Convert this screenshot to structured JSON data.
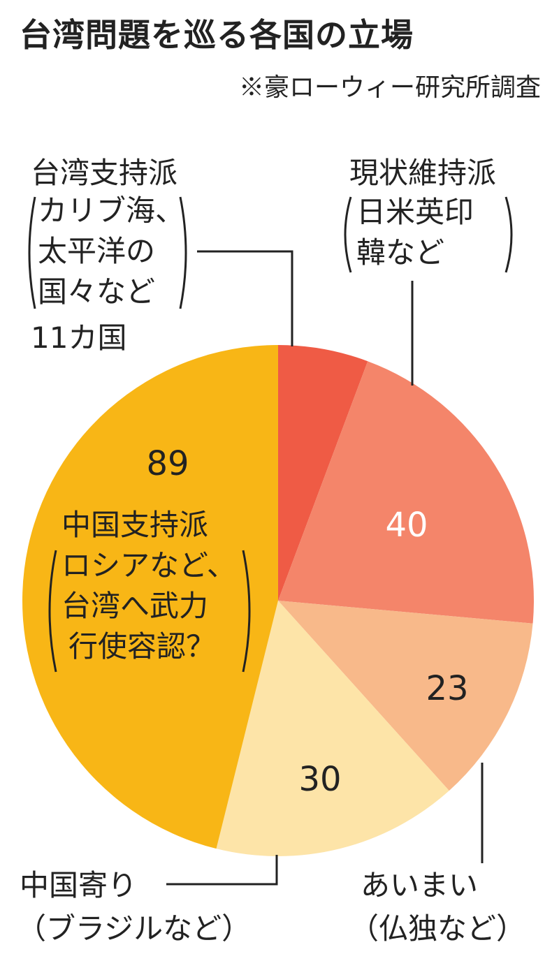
{
  "title": "台湾問題を巡る各国の立場",
  "source": "※豪ローウィー研究所調査",
  "chart_data": {
    "type": "pie",
    "categories": [
      "台湾支持派",
      "現状維持派",
      "あいまい",
      "中国寄り",
      "中国支持派"
    ],
    "values": [
      11,
      40,
      23,
      30,
      89
    ],
    "value_labels": [
      "",
      "40",
      "23",
      "30",
      "89"
    ],
    "colors": [
      "#ef5b45",
      "#f4856a",
      "#f8b98a",
      "#fde4a8",
      "#f8b616"
    ],
    "start_angle_deg": 0,
    "direction": "clockwise",
    "labels": [
      {
        "lines": [
          "台湾支持派",
          "カリブ海、",
          "太平洋の",
          "国々など",
          "11カ国"
        ]
      },
      {
        "lines": [
          "現状維持派",
          "日米英印",
          "韓など"
        ]
      },
      {
        "lines": [
          "あいまい",
          "（仏独など）"
        ]
      },
      {
        "lines": [
          "中国寄り",
          "（ブラジルなど）"
        ]
      },
      {
        "lines": [
          "中国支持派",
          "ロシアなど、",
          "台湾へ武力",
          "行使容認？"
        ]
      }
    ]
  }
}
